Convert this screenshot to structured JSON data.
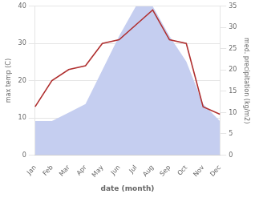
{
  "chart_data": {
    "type": "line",
    "xlabel": "date (month)",
    "ylabel": "max temp (C)",
    "y2label": "med. precipitation (kg/m2)",
    "categories": [
      "Jan",
      "Feb",
      "Mar",
      "Apr",
      "May",
      "Jun",
      "Jul",
      "Aug",
      "Sep",
      "Oct",
      "Nov",
      "Dec"
    ],
    "series": [
      {
        "type": "area",
        "color": "#c5cef0",
        "axis": "y2",
        "values": [
          8,
          8,
          10,
          12,
          20,
          28,
          35,
          35,
          28,
          22,
          12,
          8
        ]
      },
      {
        "type": "line",
        "color": "#b03030",
        "values": [
          13,
          20,
          23,
          24,
          30,
          31,
          35,
          39,
          31,
          30,
          13,
          11
        ]
      }
    ],
    "ylim": [
      0,
      40
    ],
    "yticks": [
      0,
      10,
      20,
      30,
      40
    ],
    "y2lim": [
      0,
      35
    ],
    "y2ticks": [
      0,
      5,
      10,
      15,
      20,
      25,
      30,
      35
    ],
    "grid": true
  }
}
